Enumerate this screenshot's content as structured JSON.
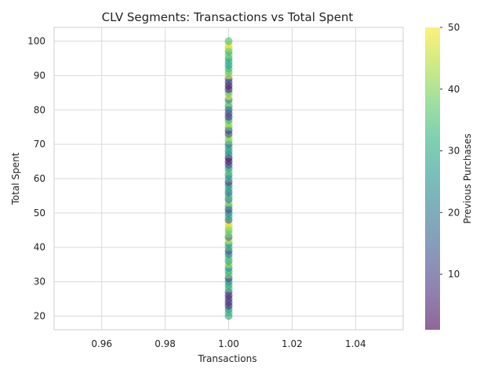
{
  "chart_data": {
    "type": "scatter",
    "title": "CLV Segments: Transactions vs Total Spent",
    "xlabel": "Transactions",
    "ylabel": "Total Spent",
    "xlim": [
      0.945,
      1.055
    ],
    "ylim": [
      16,
      104
    ],
    "xticks": [
      0.96,
      0.98,
      1.0,
      1.02,
      1.04
    ],
    "xtick_labels": [
      "0.96",
      "0.98",
      "1.00",
      "1.02",
      "1.04"
    ],
    "yticks": [
      20,
      30,
      40,
      50,
      60,
      70,
      80,
      90,
      100
    ],
    "ytick_labels": [
      "20",
      "30",
      "40",
      "50",
      "60",
      "70",
      "80",
      "90",
      "100"
    ],
    "grid": true,
    "colorbar": {
      "label": "Previous Purchases",
      "min": 1,
      "max": 50,
      "ticks": [
        10,
        20,
        30,
        40,
        50
      ],
      "tick_labels": [
        "10",
        "20",
        "30",
        "40",
        "50"
      ],
      "colormap": "viridis",
      "alpha": 0.6
    },
    "points": [
      {
        "x": 1,
        "y": 20,
        "c": 30
      },
      {
        "x": 1,
        "y": 21,
        "c": 34
      },
      {
        "x": 1,
        "y": 22,
        "c": 28
      },
      {
        "x": 1,
        "y": 23,
        "c": 8
      },
      {
        "x": 1,
        "y": 24,
        "c": 6
      },
      {
        "x": 1,
        "y": 25,
        "c": 10
      },
      {
        "x": 1,
        "y": 26,
        "c": 5
      },
      {
        "x": 1,
        "y": 27,
        "c": 12
      },
      {
        "x": 1,
        "y": 28,
        "c": 35
      },
      {
        "x": 1,
        "y": 29,
        "c": 30
      },
      {
        "x": 1,
        "y": 30,
        "c": 26
      },
      {
        "x": 1,
        "y": 31,
        "c": 9
      },
      {
        "x": 1,
        "y": 32,
        "c": 38
      },
      {
        "x": 1,
        "y": 33,
        "c": 32
      },
      {
        "x": 1,
        "y": 34,
        "c": 25
      },
      {
        "x": 1,
        "y": 35,
        "c": 42
      },
      {
        "x": 1,
        "y": 36,
        "c": 29
      },
      {
        "x": 1,
        "y": 37,
        "c": 36
      },
      {
        "x": 1,
        "y": 38,
        "c": 22
      },
      {
        "x": 1,
        "y": 39,
        "c": 12
      },
      {
        "x": 1,
        "y": 40,
        "c": 33
      },
      {
        "x": 1,
        "y": 41,
        "c": 27
      },
      {
        "x": 1,
        "y": 42,
        "c": 46
      },
      {
        "x": 1,
        "y": 43,
        "c": 18
      },
      {
        "x": 1,
        "y": 44,
        "c": 40
      },
      {
        "x": 1,
        "y": 45,
        "c": 37
      },
      {
        "x": 1,
        "y": 46,
        "c": 44
      },
      {
        "x": 1,
        "y": 47,
        "c": 48
      },
      {
        "x": 1,
        "y": 48,
        "c": 15
      },
      {
        "x": 1,
        "y": 49,
        "c": 31
      },
      {
        "x": 1,
        "y": 50,
        "c": 24
      },
      {
        "x": 1,
        "y": 51,
        "c": 10
      },
      {
        "x": 1,
        "y": 52,
        "c": 28
      },
      {
        "x": 1,
        "y": 53,
        "c": 41
      },
      {
        "x": 1,
        "y": 54,
        "c": 20
      },
      {
        "x": 1,
        "y": 55,
        "c": 34
      },
      {
        "x": 1,
        "y": 56,
        "c": 17
      },
      {
        "x": 1,
        "y": 57,
        "c": 30
      },
      {
        "x": 1,
        "y": 58,
        "c": 26
      },
      {
        "x": 1,
        "y": 59,
        "c": 8
      },
      {
        "x": 1,
        "y": 60,
        "c": 33
      },
      {
        "x": 1,
        "y": 61,
        "c": 22
      },
      {
        "x": 1,
        "y": 62,
        "c": 36
      },
      {
        "x": 1,
        "y": 63,
        "c": 29
      },
      {
        "x": 1,
        "y": 64,
        "c": 12
      },
      {
        "x": 1,
        "y": 65,
        "c": 5
      },
      {
        "x": 1,
        "y": 66,
        "c": 3
      },
      {
        "x": 1,
        "y": 67,
        "c": 27
      },
      {
        "x": 1,
        "y": 68,
        "c": 24
      },
      {
        "x": 1,
        "y": 69,
        "c": 30
      },
      {
        "x": 1,
        "y": 70,
        "c": 19
      },
      {
        "x": 1,
        "y": 71,
        "c": 38
      },
      {
        "x": 1,
        "y": 72,
        "c": 42
      },
      {
        "x": 1,
        "y": 73,
        "c": 14
      },
      {
        "x": 1,
        "y": 74,
        "c": 9
      },
      {
        "x": 1,
        "y": 75,
        "c": 35
      },
      {
        "x": 1,
        "y": 76,
        "c": 44
      },
      {
        "x": 1,
        "y": 77,
        "c": 31
      },
      {
        "x": 1,
        "y": 78,
        "c": 7
      },
      {
        "x": 1,
        "y": 79,
        "c": 11
      },
      {
        "x": 1,
        "y": 80,
        "c": 16
      },
      {
        "x": 1,
        "y": 81,
        "c": 26
      },
      {
        "x": 1,
        "y": 82,
        "c": 40
      },
      {
        "x": 1,
        "y": 83,
        "c": 21
      },
      {
        "x": 1,
        "y": 84,
        "c": 47
      },
      {
        "x": 1,
        "y": 85,
        "c": 36
      },
      {
        "x": 1,
        "y": 86,
        "c": 6
      },
      {
        "x": 1,
        "y": 87,
        "c": 4
      },
      {
        "x": 1,
        "y": 88,
        "c": 9
      },
      {
        "x": 1,
        "y": 89,
        "c": 13
      },
      {
        "x": 1,
        "y": 90,
        "c": 45
      },
      {
        "x": 1,
        "y": 91,
        "c": 37
      },
      {
        "x": 1,
        "y": 92,
        "c": 34
      },
      {
        "x": 1,
        "y": 93,
        "c": 28
      },
      {
        "x": 1,
        "y": 94,
        "c": 32
      },
      {
        "x": 1,
        "y": 95,
        "c": 30
      },
      {
        "x": 1,
        "y": 96,
        "c": 39
      },
      {
        "x": 1,
        "y": 97,
        "c": 33
      },
      {
        "x": 1,
        "y": 98,
        "c": 43
      },
      {
        "x": 1,
        "y": 99,
        "c": 49
      },
      {
        "x": 1,
        "y": 100,
        "c": 35
      }
    ]
  }
}
